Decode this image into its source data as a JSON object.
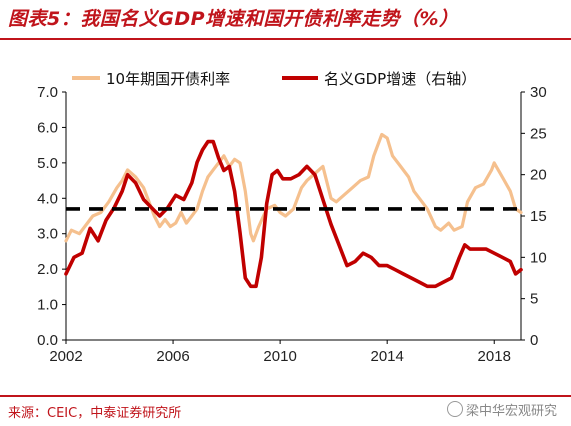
{
  "title": "图表5：我国名义GDP增速和国开债利率走势（%）",
  "source": "来源：CEIC，中泰证券研究所",
  "watermark": "梁中华宏观研究",
  "colors": {
    "rate": "#f5c08e",
    "gdp": "#c00000",
    "dash": "#000000",
    "accent": "#c0141b"
  },
  "chart_data": {
    "type": "line",
    "title": "",
    "legend": {
      "placement": "top-center",
      "entries": [
        "10年期国开债利率",
        "名义GDP增速（右轴）"
      ]
    },
    "x": {
      "range": [
        2002,
        2019
      ],
      "ticks": [
        2002,
        2006,
        2010,
        2014,
        2018
      ],
      "tick_labels": [
        "2002",
        "2006",
        "2010",
        "2014",
        "2018"
      ]
    },
    "y_left": {
      "range": [
        0,
        7
      ],
      "ticks": [
        0,
        1,
        2,
        3,
        4,
        5,
        6,
        7
      ],
      "tick_labels": [
        "0.0",
        "1.0",
        "2.0",
        "3.0",
        "4.0",
        "5.0",
        "6.0",
        "7.0"
      ]
    },
    "y_right": {
      "range": [
        0,
        30
      ],
      "ticks": [
        0,
        5,
        10,
        15,
        20,
        25,
        30
      ],
      "tick_labels": [
        "0",
        "5",
        "10",
        "15",
        "20",
        "25",
        "30"
      ]
    },
    "grid": false,
    "series": [
      {
        "name": "10年期国开债利率",
        "axis": "left",
        "style": "line",
        "points": [
          [
            2002.0,
            2.8
          ],
          [
            2002.2,
            3.1
          ],
          [
            2002.5,
            3.0
          ],
          [
            2002.8,
            3.3
          ],
          [
            2003.0,
            3.5
          ],
          [
            2003.3,
            3.6
          ],
          [
            2003.6,
            3.9
          ],
          [
            2003.9,
            4.3
          ],
          [
            2004.1,
            4.5
          ],
          [
            2004.3,
            4.8
          ],
          [
            2004.6,
            4.6
          ],
          [
            2004.9,
            4.3
          ],
          [
            2005.1,
            3.9
          ],
          [
            2005.3,
            3.5
          ],
          [
            2005.5,
            3.2
          ],
          [
            2005.7,
            3.4
          ],
          [
            2005.9,
            3.2
          ],
          [
            2006.1,
            3.3
          ],
          [
            2006.3,
            3.6
          ],
          [
            2006.5,
            3.3
          ],
          [
            2006.7,
            3.5
          ],
          [
            2006.9,
            3.7
          ],
          [
            2007.1,
            4.2
          ],
          [
            2007.3,
            4.6
          ],
          [
            2007.5,
            4.8
          ],
          [
            2007.7,
            5.0
          ],
          [
            2007.9,
            5.2
          ],
          [
            2008.1,
            4.9
          ],
          [
            2008.3,
            5.1
          ],
          [
            2008.5,
            5.0
          ],
          [
            2008.7,
            4.2
          ],
          [
            2008.9,
            3.0
          ],
          [
            2009.0,
            2.8
          ],
          [
            2009.2,
            3.2
          ],
          [
            2009.5,
            3.7
          ],
          [
            2009.8,
            3.8
          ],
          [
            2010.0,
            3.6
          ],
          [
            2010.2,
            3.5
          ],
          [
            2010.5,
            3.7
          ],
          [
            2010.8,
            4.3
          ],
          [
            2011.0,
            4.5
          ],
          [
            2011.3,
            4.7
          ],
          [
            2011.6,
            4.9
          ],
          [
            2011.9,
            4.0
          ],
          [
            2012.1,
            3.9
          ],
          [
            2012.4,
            4.1
          ],
          [
            2012.7,
            4.3
          ],
          [
            2013.0,
            4.5
          ],
          [
            2013.3,
            4.6
          ],
          [
            2013.5,
            5.2
          ],
          [
            2013.8,
            5.8
          ],
          [
            2014.0,
            5.7
          ],
          [
            2014.2,
            5.2
          ],
          [
            2014.5,
            4.9
          ],
          [
            2014.8,
            4.6
          ],
          [
            2015.0,
            4.2
          ],
          [
            2015.3,
            3.9
          ],
          [
            2015.5,
            3.7
          ],
          [
            2015.8,
            3.2
          ],
          [
            2016.0,
            3.1
          ],
          [
            2016.3,
            3.3
          ],
          [
            2016.5,
            3.1
          ],
          [
            2016.8,
            3.2
          ],
          [
            2017.0,
            3.9
          ],
          [
            2017.3,
            4.3
          ],
          [
            2017.6,
            4.4
          ],
          [
            2017.9,
            4.8
          ],
          [
            2018.0,
            5.0
          ],
          [
            2018.3,
            4.6
          ],
          [
            2018.6,
            4.2
          ],
          [
            2018.8,
            3.7
          ],
          [
            2019.0,
            3.6
          ]
        ]
      },
      {
        "name": "名义GDP增速（右轴）",
        "axis": "right",
        "style": "line",
        "points": [
          [
            2002.0,
            8.0
          ],
          [
            2002.3,
            10.0
          ],
          [
            2002.6,
            10.5
          ],
          [
            2002.9,
            13.5
          ],
          [
            2003.2,
            12.0
          ],
          [
            2003.5,
            14.5
          ],
          [
            2003.8,
            16.0
          ],
          [
            2004.1,
            18.0
          ],
          [
            2004.3,
            20.0
          ],
          [
            2004.6,
            19.0
          ],
          [
            2004.9,
            17.0
          ],
          [
            2005.2,
            16.0
          ],
          [
            2005.5,
            15.0
          ],
          [
            2005.8,
            16.0
          ],
          [
            2006.1,
            17.5
          ],
          [
            2006.4,
            17.0
          ],
          [
            2006.7,
            19.0
          ],
          [
            2006.9,
            21.5
          ],
          [
            2007.1,
            23.0
          ],
          [
            2007.3,
            24.0
          ],
          [
            2007.5,
            24.0
          ],
          [
            2007.7,
            22.0
          ],
          [
            2007.9,
            20.5
          ],
          [
            2008.1,
            21.0
          ],
          [
            2008.3,
            18.0
          ],
          [
            2008.5,
            13.0
          ],
          [
            2008.7,
            7.5
          ],
          [
            2008.9,
            6.5
          ],
          [
            2009.1,
            6.5
          ],
          [
            2009.3,
            10.0
          ],
          [
            2009.5,
            16.5
          ],
          [
            2009.7,
            20.0
          ],
          [
            2009.9,
            20.5
          ],
          [
            2010.1,
            19.5
          ],
          [
            2010.4,
            19.5
          ],
          [
            2010.7,
            20.0
          ],
          [
            2011.0,
            21.0
          ],
          [
            2011.3,
            20.0
          ],
          [
            2011.6,
            17.0
          ],
          [
            2011.9,
            14.0
          ],
          [
            2012.2,
            11.5
          ],
          [
            2012.5,
            9.0
          ],
          [
            2012.8,
            9.5
          ],
          [
            2013.1,
            10.5
          ],
          [
            2013.4,
            10.0
          ],
          [
            2013.7,
            9.0
          ],
          [
            2014.0,
            9.0
          ],
          [
            2014.3,
            8.5
          ],
          [
            2014.6,
            8.0
          ],
          [
            2014.9,
            7.5
          ],
          [
            2015.2,
            7.0
          ],
          [
            2015.5,
            6.5
          ],
          [
            2015.8,
            6.5
          ],
          [
            2016.1,
            7.0
          ],
          [
            2016.4,
            7.5
          ],
          [
            2016.7,
            10.0
          ],
          [
            2016.9,
            11.5
          ],
          [
            2017.1,
            11.0
          ],
          [
            2017.4,
            11.0
          ],
          [
            2017.7,
            11.0
          ],
          [
            2018.0,
            10.5
          ],
          [
            2018.3,
            10.0
          ],
          [
            2018.6,
            9.5
          ],
          [
            2018.8,
            8.0
          ],
          [
            2019.0,
            8.5
          ]
        ]
      },
      {
        "name": "",
        "axis": "left",
        "style": "dashed",
        "points": [
          [
            2002.0,
            3.7
          ],
          [
            2019.0,
            3.7
          ]
        ]
      }
    ]
  }
}
